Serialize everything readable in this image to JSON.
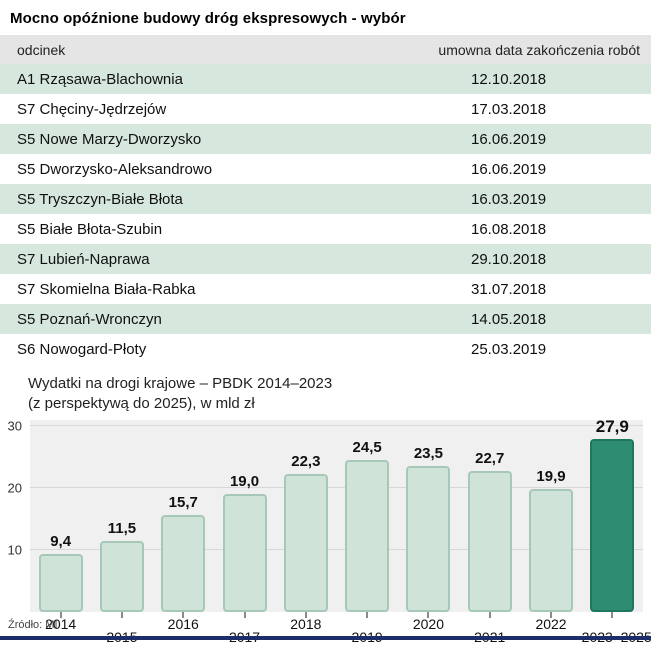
{
  "title": "Mocno opóźnione budowy dróg ekspresowych - wybór",
  "table": {
    "columns": [
      "odcinek",
      "umowna data zakończenia robót"
    ],
    "rows": [
      {
        "section": "A1 Rząsawa-Blachownia",
        "date": "12.10.2018"
      },
      {
        "section": "S7 Chęciny-Jędrzejów",
        "date": "17.03.2018"
      },
      {
        "section": "S5 Nowe Marzy-Dworzysko",
        "date": "16.06.2019"
      },
      {
        "section": "S5 Dworzysko-Aleksandrowo",
        "date": "16.06.2019"
      },
      {
        "section": "S5 Tryszczyn-Białe Błota",
        "date": "16.03.2019"
      },
      {
        "section": "S5 Białe Błota-Szubin",
        "date": "16.08.2018"
      },
      {
        "section": "S7 Lubień-Naprawa",
        "date": "29.10.2018"
      },
      {
        "section": "S7 Skomielna Biała-Rabka",
        "date": "31.07.2018"
      },
      {
        "section": "S5 Poznań-Wronczyn",
        "date": "14.05.2018"
      },
      {
        "section": "S6 Nowogard-Płoty",
        "date": "25.03.2019"
      }
    ]
  },
  "chart_data": {
    "type": "bar",
    "title": "Wydatki na drogi krajowe – PBDK 2014–2023 (z perspektywą do 2025), w mld zł",
    "title_lines": [
      "Wydatki na drogi krajowe – PBDK 2014–2023",
      "(z perspektywą do 2025), w mld zł"
    ],
    "xlabel": "",
    "ylabel": "w mld zł",
    "categories": [
      "2014",
      "2015",
      "2016",
      "2017",
      "2018",
      "2019",
      "2020",
      "2021",
      "2022",
      "2023–2025"
    ],
    "values": [
      9.4,
      11.5,
      15.7,
      19.0,
      22.3,
      24.5,
      23.5,
      22.7,
      19.9,
      27.9
    ],
    "value_labels": [
      "9,4",
      "11,5",
      "15,7",
      "19,0",
      "22,3",
      "24,5",
      "23,5",
      "22,7",
      "19,9",
      "27,9"
    ],
    "ylim": [
      0,
      30
    ],
    "yticks": [
      10,
      20,
      30
    ],
    "grid": true,
    "legend": false,
    "highlight_index": 9
  },
  "source": "Źródło: MI",
  "colors": {
    "row_green": "#d6e7de",
    "header_bg": "#e4e5e4",
    "plot_bg": "#f0f0f0",
    "bar_fill": "#cfe3d9",
    "bar_border": "#a6c8b8",
    "bar_highlight": "#2e8c72",
    "bar_highlight_border": "#20775e",
    "bottom_bar": "#1d2d69"
  }
}
